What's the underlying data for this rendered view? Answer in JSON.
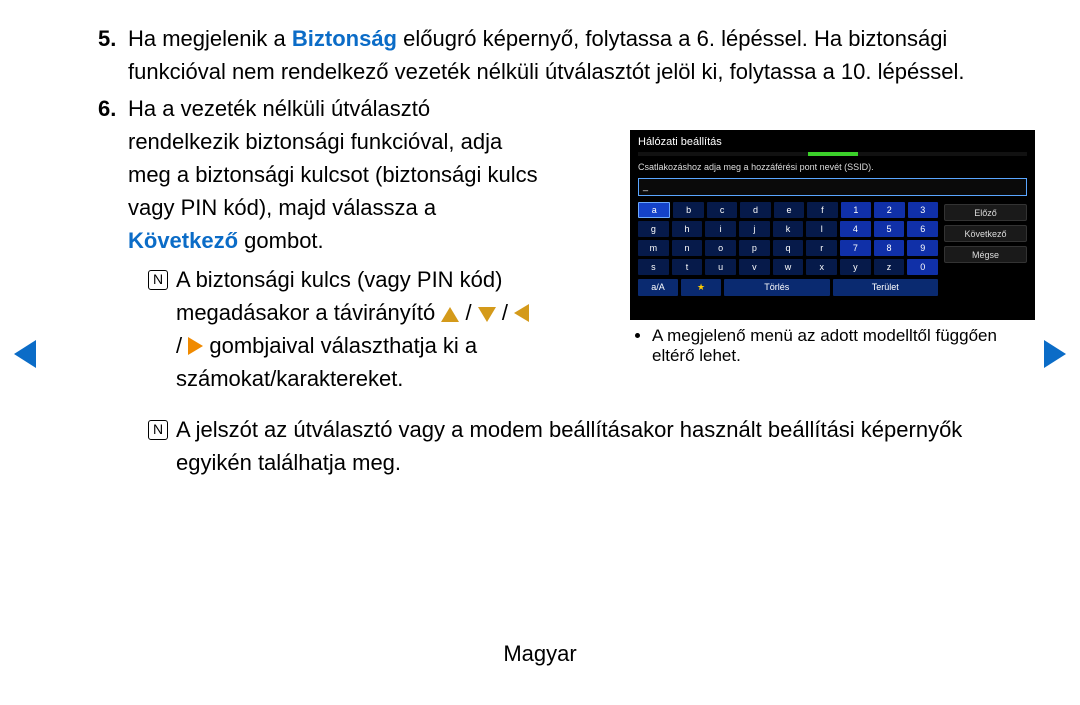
{
  "steps": {
    "five": {
      "num": "5.",
      "pre": "Ha megjelenik a ",
      "bold": "Biztonság",
      "post": " előugró képernyő, folytassa a 6. lépéssel. Ha biztonsági funkcióval nem rendelkező vezeték nélküli útválasztót jelöl ki, folytassa a 10. lépéssel."
    },
    "six": {
      "num": "6.",
      "pre": "Ha a vezeték nélküli útválasztó rendelkezik biztonsági funkcióval, adja meg a biztonsági kulcsot (biztonsági kulcs vagy PIN kód), majd válassza a ",
      "bold": "Következő",
      "post": " gombot."
    }
  },
  "notes": {
    "a_pre": "A biztonsági kulcs (vagy PIN kód) megadásakor a távirányító ",
    "a_sep1": " / ",
    "a_sep2": " / ",
    "a_sep3": " / ",
    "a_post": " gombjaival választhatja ki a számokat/karaktereket.",
    "b": "A jelszót az útválasztó vagy a modem beállításakor használt beállítási képernyők egyikén találhatja meg.",
    "icon_glyph": "N"
  },
  "device": {
    "title": "Hálózati beállítás",
    "instruction": "Csatlakozáshoz adja meg a hozzáférési pont nevét (SSID).",
    "input_value": "_",
    "rows": [
      {
        "letters": [
          "a",
          "b",
          "c",
          "d",
          "e",
          "f"
        ],
        "nums": [
          "1",
          "2",
          "3"
        ],
        "selected": 0
      },
      {
        "letters": [
          "g",
          "h",
          "i",
          "j",
          "k",
          "l"
        ],
        "nums": [
          "4",
          "5",
          "6"
        ],
        "selected": -1
      },
      {
        "letters": [
          "m",
          "n",
          "o",
          "p",
          "q",
          "r"
        ],
        "nums": [
          "7",
          "8",
          "9"
        ],
        "selected": -1
      },
      {
        "letters": [
          "s",
          "t",
          "u",
          "v",
          "w",
          "x"
        ],
        "nums": [
          "y",
          "z",
          "0"
        ],
        "selected": -1,
        "numsAreLetters": true
      }
    ],
    "func": {
      "aA": "a/A",
      "star": "★",
      "delete": "Törlés",
      "space": "Terület"
    },
    "side": {
      "prev": "Előző",
      "next": "Következő",
      "cancel": "Mégse"
    },
    "colors": {
      "bg": "#000000",
      "letter_key": "#061a4a",
      "num_key": "#1030a8",
      "selected_key": "#1442c8",
      "func_key": "#0a2a70",
      "side_btn": "#1a1a1a",
      "progress": "#3bd12a",
      "input_border": "#5aa6ff",
      "text": "#ffffff"
    }
  },
  "caption": "A megjelenő menü az adott modelltől függően eltérő lehet.",
  "footer": "Magyar",
  "arrow_colors": {
    "dpad": "#d49a1a",
    "right_orange": "#f08a00",
    "nav_blue": "#0b6cc7"
  }
}
